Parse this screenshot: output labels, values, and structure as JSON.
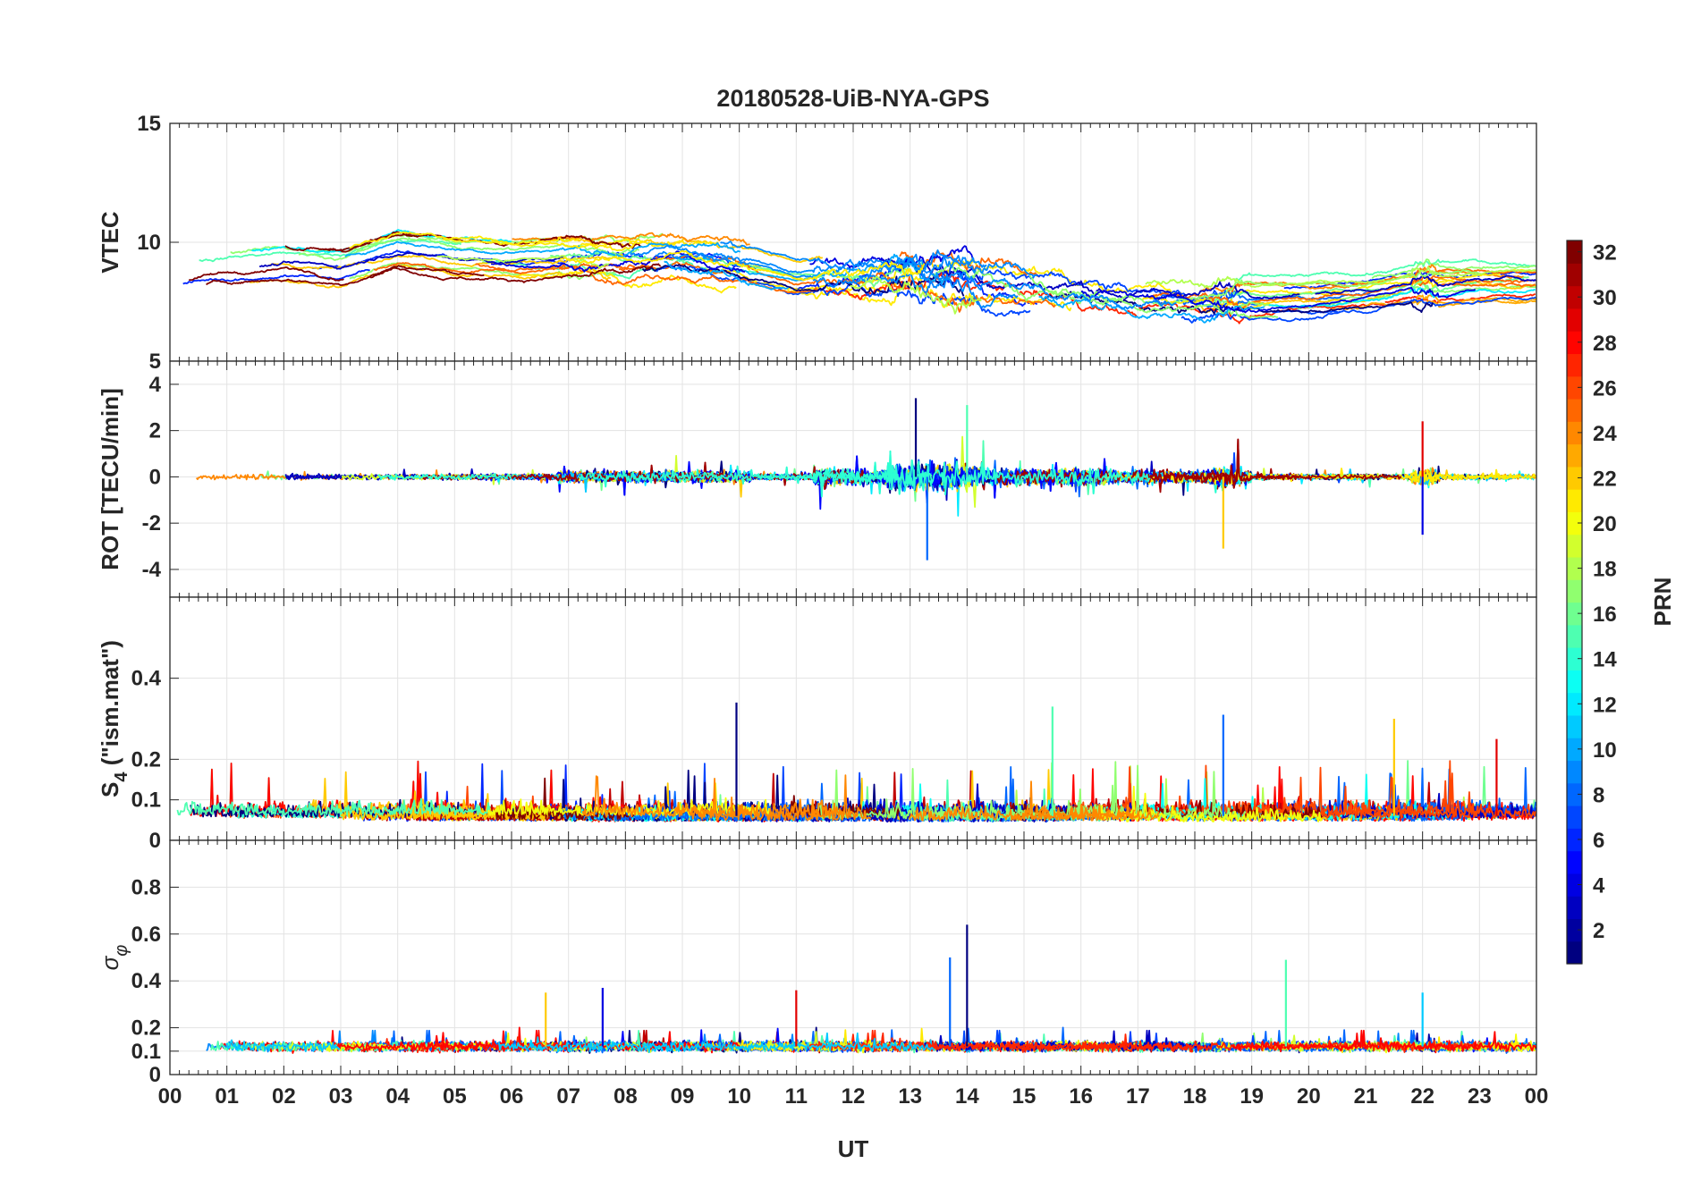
{
  "chart_data": {
    "type": "line",
    "title": "20180528-UiB-NYA-GPS",
    "xlabel": "UT",
    "x_ticks": [
      "00",
      "01",
      "02",
      "03",
      "04",
      "05",
      "06",
      "07",
      "08",
      "09",
      "10",
      "11",
      "12",
      "13",
      "14",
      "15",
      "16",
      "17",
      "18",
      "19",
      "20",
      "21",
      "22",
      "23",
      "00"
    ],
    "xlim_hours": [
      0,
      24
    ],
    "grid": true,
    "colorbar": {
      "label": "PRN",
      "range": [
        1,
        32
      ],
      "ticks": [
        "2",
        "4",
        "6",
        "8",
        "10",
        "12",
        "14",
        "16",
        "18",
        "20",
        "22",
        "24",
        "26",
        "28",
        "30",
        "32"
      ],
      "colormap": "jet",
      "steps": 32
    },
    "panels": [
      {
        "name": "vtec",
        "ylabel": "VTEC",
        "ylim": [
          5,
          15
        ],
        "yticks": [
          "5",
          "10",
          "15"
        ],
        "yticks_values": [
          5,
          10,
          15
        ],
        "series_profile": [
          {
            "x": 0,
            "y": 8.6
          },
          {
            "x": 1,
            "y": 8.9
          },
          {
            "x": 2,
            "y": 9.1
          },
          {
            "x": 3,
            "y": 8.9
          },
          {
            "x": 4,
            "y": 9.7
          },
          {
            "x": 5,
            "y": 9.4
          },
          {
            "x": 6,
            "y": 9.3
          },
          {
            "x": 7,
            "y": 9.4
          },
          {
            "x": 8,
            "y": 9.3
          },
          {
            "x": 9,
            "y": 9.6
          },
          {
            "x": 10,
            "y": 9.2
          },
          {
            "x": 11,
            "y": 8.6
          },
          {
            "x": 12,
            "y": 8.6
          },
          {
            "x": 13,
            "y": 8.8
          },
          {
            "x": 14,
            "y": 8.7
          },
          {
            "x": 15,
            "y": 8.3
          },
          {
            "x": 16,
            "y": 8.0
          },
          {
            "x": 17,
            "y": 7.6
          },
          {
            "x": 18,
            "y": 7.5
          },
          {
            "x": 19,
            "y": 7.6
          },
          {
            "x": 20,
            "y": 7.6
          },
          {
            "x": 21,
            "y": 7.8
          },
          {
            "x": 22,
            "y": 8.2
          },
          {
            "x": 23,
            "y": 8.3
          },
          {
            "x": 24,
            "y": 8.3
          }
        ]
      },
      {
        "name": "rot",
        "ylabel": "ROT [TECU/min]",
        "ylim": [
          -5.2,
          5
        ],
        "yticks": [
          "-4",
          "-2",
          "0",
          "2",
          "4"
        ],
        "yticks_values": [
          -4,
          -2,
          0,
          2,
          4
        ],
        "notable_peaks": [
          {
            "x": 13.1,
            "y": 3.4
          },
          {
            "x": 13.3,
            "y": -3.6
          },
          {
            "x": 14.0,
            "y": 3.1
          },
          {
            "x": 18.5,
            "y": -3.1
          },
          {
            "x": 22.0,
            "y": 2.4
          },
          {
            "x": 22.0,
            "y": -2.5
          }
        ]
      },
      {
        "name": "s4",
        "ylabel": "S4 (\"ism.mat\")",
        "ylabel_main": "S",
        "ylabel_sub": "4",
        "ylabel_suffix": " (\"ism.mat\")",
        "ylim": [
          0,
          0.6
        ],
        "yticks": [
          "0",
          "0.1",
          "0.2",
          "0.4"
        ],
        "yticks_values": [
          0,
          0.1,
          0.2,
          0.4
        ],
        "notable_peaks": [
          {
            "x": 9.95,
            "y": 0.34
          },
          {
            "x": 18.5,
            "y": 0.31
          },
          {
            "x": 15.5,
            "y": 0.33
          },
          {
            "x": 21.5,
            "y": 0.3
          },
          {
            "x": 23.3,
            "y": 0.25
          }
        ]
      },
      {
        "name": "sigma-phi",
        "ylabel": "σφ",
        "ylabel_main": "σ",
        "ylabel_sub": "φ",
        "ylim": [
          0,
          1
        ],
        "yticks": [
          "0",
          "0.1",
          "0.2",
          "0.4",
          "0.6",
          "0.8"
        ],
        "yticks_values": [
          0,
          0.1,
          0.2,
          0.4,
          0.6,
          0.8
        ],
        "notable_peaks": [
          {
            "x": 14.0,
            "y": 0.64
          },
          {
            "x": 13.7,
            "y": 0.5
          },
          {
            "x": 19.6,
            "y": 0.49
          },
          {
            "x": 6.6,
            "y": 0.35
          },
          {
            "x": 11.0,
            "y": 0.36
          },
          {
            "x": 7.6,
            "y": 0.37
          },
          {
            "x": 22.0,
            "y": 0.35
          }
        ]
      }
    ]
  }
}
